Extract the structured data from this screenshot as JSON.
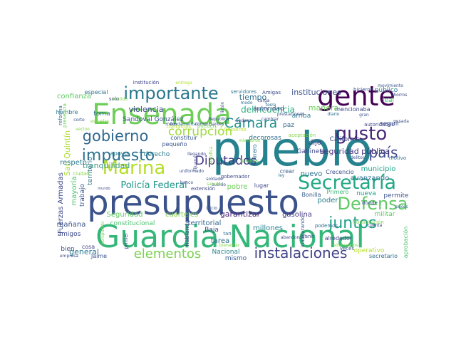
{
  "words": [
    {
      "text": "pueblo",
      "color": "#26828e"
    },
    {
      "text": "Guardia Nacional",
      "color": "#35b779"
    },
    {
      "text": "presupuesto",
      "color": "#3b528b"
    },
    {
      "text": "Ensenada",
      "color": "#6ece58"
    },
    {
      "text": "gente",
      "color": "#440154"
    },
    {
      "text": "importante",
      "color": "#2a788e"
    },
    {
      "text": "Marina",
      "color": "#b5de2b"
    },
    {
      "text": "Secretaría",
      "color": "#22a884"
    },
    {
      "text": "impuesto",
      "color": "#2c728e"
    },
    {
      "text": "gobierno",
      "color": "#31688e"
    },
    {
      "text": "Defensa",
      "color": "#5ec962"
    },
    {
      "text": "gusto",
      "color": "#482878"
    },
    {
      "text": "instalaciones",
      "color": "#414487"
    },
    {
      "text": "juntos",
      "color": "#1f9e89"
    },
    {
      "text": "elementos",
      "color": "#7ad151"
    },
    {
      "text": "Cámara",
      "color": "#21918c"
    },
    {
      "text": "Diputados",
      "color": "#443983"
    },
    {
      "text": "corrupción",
      "color": "#9fda3a"
    },
    {
      "text": "país",
      "color": "#3e4a89"
    },
    {
      "text": "Policía Federal",
      "color": "#1f968b"
    },
    {
      "text": "delincuencia",
      "color": "#29af7f"
    },
    {
      "text": "instituciones",
      "color": "#3b528b"
    },
    {
      "text": "seguridad pública",
      "color": "#46337e"
    },
    {
      "text": "tranquilidad",
      "color": "#3c9a86"
    },
    {
      "text": "Fuerzas Armadas",
      "color": "#3e4989"
    },
    {
      "text": "San Quintín",
      "color": "#addc30"
    },
    {
      "text": "avanzando",
      "color": "#2d708e"
    },
    {
      "text": "municipio",
      "color": "#20a386"
    },
    {
      "text": "garantizar",
      "color": "#481f70"
    },
    {
      "text": "millones",
      "color": "#25838e"
    },
    {
      "text": "gasolina",
      "color": "#453781"
    },
    {
      "text": "cuarteles",
      "color": "#84d44b"
    },
    {
      "text": "Seguridad",
      "color": "#5ec962"
    },
    {
      "text": "territorial",
      "color": "#31688e"
    },
    {
      "text": "constitucional",
      "color": "#4ac16d"
    },
    {
      "text": "general",
      "color": "#2a788e"
    },
    {
      "text": "Nacional",
      "color": "#26818e"
    },
    {
      "text": "mismo",
      "color": "#365c8d"
    },
    {
      "text": "tarea",
      "color": "#2e6f8e"
    },
    {
      "text": "poder",
      "color": "#277f8e"
    },
    {
      "text": "nueva",
      "color": "#1fa088"
    },
    {
      "text": "militar",
      "color": "#5ec962"
    },
    {
      "text": "permite",
      "color": "#3b528b"
    },
    {
      "text": "Bonilla",
      "color": "#365d8d"
    },
    {
      "text": "Primero",
      "color": "#3aba76"
    },
    {
      "text": "Gabinete",
      "color": "#3f4788"
    },
    {
      "text": "dijo",
      "color": "#414487"
    },
    {
      "text": "dinero",
      "color": "#2c738e"
    },
    {
      "text": "paz",
      "color": "#31688e"
    },
    {
      "text": "California",
      "color": "#3e4989"
    },
    {
      "text": "mayoría",
      "color": "#4ac16d"
    },
    {
      "text": "trabajo",
      "color": "#39568c"
    },
    {
      "text": "territorio",
      "color": "#2d718e"
    },
    {
      "text": "respeto",
      "color": "#2a788e"
    },
    {
      "text": "mañana",
      "color": "#3b528b"
    },
    {
      "text": "confianza",
      "color": "#5ec962"
    },
    {
      "text": "especial",
      "color": "#2c728e"
    },
    {
      "text": "Sandoval González",
      "color": "#39558c"
    },
    {
      "text": "tiempo",
      "color": "#2e6e8e"
    },
    {
      "text": "autoridad",
      "color": "#3f4788"
    },
    {
      "text": "manera",
      "color": "#6ece58"
    },
    {
      "text": "leal",
      "color": "#4ac16d"
    },
    {
      "text": "seguir",
      "color": "#3b528b"
    },
    {
      "text": "público",
      "color": "#2a788e"
    },
    {
      "text": "institución",
      "color": "#404588"
    },
    {
      "text": "violencia",
      "color": "#3e4989"
    },
    {
      "text": "derecho",
      "color": "#2a788e"
    },
    {
      "text": "pequeño",
      "color": "#3b528b"
    },
    {
      "text": "constituir",
      "color": "#39568c"
    },
    {
      "text": "decorosas",
      "color": "#2e6e8e"
    },
    {
      "text": "pobre",
      "color": "#6ece58"
    },
    {
      "text": "extensión",
      "color": "#3e4a89"
    },
    {
      "text": "nuevo",
      "color": "#2e6e8e"
    },
    {
      "text": "Crecencio",
      "color": "#3b528b"
    },
    {
      "text": "crear",
      "color": "#38588c"
    },
    {
      "text": "lugar",
      "color": "#3e4989"
    },
    {
      "text": "Baja",
      "color": "#3b528b"
    },
    {
      "text": "ganó",
      "color": "#3f4788"
    },
    {
      "text": "alrededor",
      "color": "#414487"
    },
    {
      "text": "Constitución",
      "color": "#84d44b"
    },
    {
      "text": "operativo",
      "color": "#b5de2b"
    },
    {
      "text": "veces",
      "color": "#38588c"
    },
    {
      "text": "secretario",
      "color": "#2e6e8e"
    },
    {
      "text": "aprobación",
      "color": "#4ac16d"
    },
    {
      "text": "bien",
      "color": "#3b528b"
    },
    {
      "text": "amigos",
      "color": "#3e4989"
    },
    {
      "text": "hombre",
      "color": "#2a788e"
    },
    {
      "text": "toma",
      "color": "#2e6e8e"
    },
    {
      "text": "apoyo",
      "color": "#2a788e"
    },
    {
      "text": "ciudad",
      "color": "#84d44b"
    },
    {
      "text": "cosa",
      "color": "#414487"
    },
    {
      "text": "Jaime",
      "color": "#3b528b"
    },
    {
      "text": "primer",
      "color": "#3e4989"
    },
    {
      "text": "aeropuerto",
      "color": "#84d44b"
    },
    {
      "text": "reforma",
      "color": "#2e6e8e"
    },
    {
      "text": "presencia",
      "color": "#6ece58"
    },
    {
      "text": "movimiento",
      "color": "#3b528b"
    },
    {
      "text": "mencionaba",
      "color": "#3e4989"
    },
    {
      "text": "arriba",
      "color": "#2a788e"
    },
    {
      "text": "motivo",
      "color": "#2e6e8e"
    },
    {
      "text": "donde",
      "color": "#3b528b"
    },
    {
      "text": "autoridades",
      "color": "#3e4989"
    },
    {
      "text": "podemos",
      "color": "#2e6e8e"
    },
    {
      "text": "inaugurando",
      "color": "#3b528b"
    },
    {
      "text": "Amigas",
      "color": "#3e4989"
    },
    {
      "text": "servidores",
      "color": "#2a788e"
    },
    {
      "text": "hicieron",
      "color": "#3b528b"
    },
    {
      "text": "solo",
      "color": "#3e4989"
    },
    {
      "text": "banco",
      "color": "#3b528b"
    },
    {
      "text": "aceptación",
      "color": "#84d44b"
    },
    {
      "text": "Gobierno",
      "color": "#b5de2b"
    },
    {
      "text": "gobernador",
      "color": "#3e4989"
    },
    {
      "text": "Tenemos",
      "color": "#6ece58"
    },
    {
      "text": "contamos",
      "color": "#b5de2b"
    },
    {
      "text": "empresa",
      "color": "#3b528b"
    },
    {
      "text": "mundo",
      "color": "#3e4989"
    },
    {
      "text": "pasada",
      "color": "#3b528b"
    },
    {
      "text": "ahorros",
      "color": "#3e4989"
    },
    {
      "text": "pesos",
      "color": "#2e6e8e"
    },
    {
      "text": "uniformado",
      "color": "#3b528b"
    },
    {
      "text": "diario",
      "color": "#2e6e8e"
    },
    {
      "text": "listón",
      "color": "#3e4989"
    },
    {
      "text": "inicio",
      "color": "#3b528b"
    },
    {
      "text": "sentido",
      "color": "#84d44b"
    },
    {
      "text": "hablando",
      "color": "#3e4989"
    },
    {
      "text": "corte",
      "color": "#3b528b"
    },
    {
      "text": "vecino",
      "color": "#84d44b"
    },
    {
      "text": "Sedena",
      "color": "#3e4989"
    },
    {
      "text": "ley",
      "color": "#2e6e8e"
    },
    {
      "text": "miembros",
      "color": "#84d44b"
    },
    {
      "text": "cambiar",
      "color": "#3b528b"
    },
    {
      "text": "pueden",
      "color": "#6ece58"
    },
    {
      "text": "comerciantes",
      "color": "#3e4989"
    },
    {
      "text": "fundamental",
      "color": "#2e6e8e"
    },
    {
      "text": "entrega",
      "color": "#b5de2b"
    },
    {
      "text": "gran",
      "color": "#3b528b"
    },
    {
      "text": "escuelas",
      "color": "#84d44b"
    },
    {
      "text": "abandono",
      "color": "#3e4989"
    },
    {
      "text": "prestaciones",
      "color": "#3b528b"
    },
    {
      "text": "torre",
      "color": "#2e6e8e"
    },
    {
      "text": "mero",
      "color": "#3e4989"
    },
    {
      "text": "significa",
      "color": "#84d44b"
    },
    {
      "text": "sueldo",
      "color": "#3b528b"
    },
    {
      "text": "cuenta",
      "color": "#3e4989"
    },
    {
      "text": "adversarios",
      "color": "#84d44b"
    },
    {
      "text": "delitos",
      "color": "#3b528b"
    },
    {
      "text": "Tijuana",
      "color": "#3e4989"
    },
    {
      "text": "tan",
      "color": "#2e6e8e"
    },
    {
      "text": "Republica",
      "color": "#3b528b"
    },
    {
      "text": "bienestar",
      "color": "#84d44b"
    },
    {
      "text": "llegando",
      "color": "#3e4989"
    },
    {
      "text": "soldado",
      "color": "#3b528b"
    },
    {
      "text": "modo",
      "color": "#2e6e8e"
    },
    {
      "text": "carga",
      "color": "#3e4989"
    },
    {
      "text": "saludo",
      "color": "#84d44b"
    }
  ]
}
